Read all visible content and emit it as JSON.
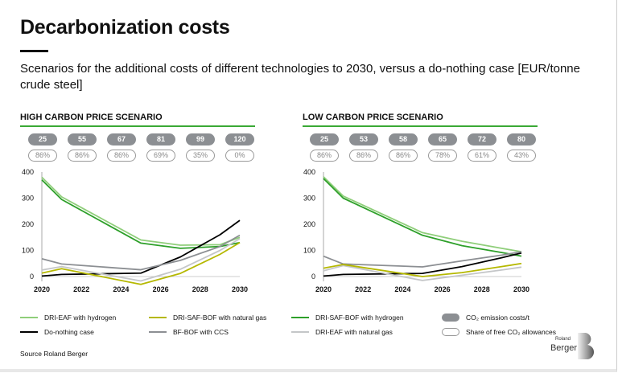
{
  "title": "Decarbonization costs",
  "subtitle": "Scenarios for the additional costs of different technologies to 2030, versus a do-nothing case [EUR/tonne crude steel]",
  "source": "Source Roland Berger",
  "logo": "Roland Berger",
  "legend": [
    {
      "label": "DRI-EAF with hydrogen",
      "color": "#8fce7a",
      "kind": "line"
    },
    {
      "label": "DRI-SAF-BOF with natural gas",
      "color": "#b5b800",
      "kind": "line"
    },
    {
      "label": "DRI-SAF-BOF with hydrogen",
      "color": "#2ea02a",
      "kind": "line"
    },
    {
      "label": "CO₂ emission costs/t",
      "color": "#8c8f93",
      "kind": "filled"
    },
    {
      "label": "Do-nothing case",
      "color": "#000000",
      "kind": "line"
    },
    {
      "label": "BF-BOF with CCS",
      "color": "#8c8f93",
      "kind": "line"
    },
    {
      "label": "DRI-EAF with natural gas",
      "color": "#c4c6c8",
      "kind": "line"
    },
    {
      "label": "Share of free CO₂ allowances",
      "color": "#999999",
      "kind": "outline"
    }
  ],
  "chart_data": [
    {
      "type": "line",
      "title": "HIGH CARBON PRICE SCENARIO",
      "ylim": [
        0,
        400
      ],
      "yticks": [
        "0",
        "100",
        "200",
        "300",
        "400"
      ],
      "xticks": [
        "2020",
        "2022",
        "2024",
        "2026",
        "2028",
        "2030"
      ],
      "co2_costs": [
        "25",
        "55",
        "67",
        "81",
        "99",
        "120"
      ],
      "free_allowances": [
        "86%",
        "86%",
        "86%",
        "69%",
        "35%",
        "0%"
      ],
      "x": [
        2020,
        2021,
        2025,
        2027,
        2029,
        2030
      ],
      "series": [
        {
          "name": "DRI-EAF with hydrogen",
          "color": "#8fce7a",
          "values": [
            380,
            305,
            140,
            120,
            122,
            150
          ]
        },
        {
          "name": "DRI-SAF-BOF with hydrogen",
          "color": "#2ea02a",
          "values": [
            370,
            295,
            128,
            108,
            115,
            130
          ]
        },
        {
          "name": "Do-nothing case",
          "color": "#000000",
          "values": [
            2,
            8,
            13,
            75,
            160,
            215
          ]
        },
        {
          "name": "BF-BOF with CCS",
          "color": "#8c8f93",
          "values": [
            68,
            48,
            26,
            62,
            115,
            158
          ]
        },
        {
          "name": "DRI-EAF with natural gas",
          "color": "#c4c6c8",
          "values": [
            25,
            38,
            -17,
            28,
            100,
            145
          ]
        },
        {
          "name": "DRI-SAF-BOF with natural gas",
          "color": "#b5b800",
          "values": [
            13,
            30,
            -30,
            12,
            85,
            130
          ]
        }
      ]
    },
    {
      "type": "line",
      "title": "LOW CARBON PRICE SCENARIO",
      "ylim": [
        0,
        400
      ],
      "yticks": [
        "0",
        "100",
        "200",
        "300",
        "400"
      ],
      "xticks": [
        "2020",
        "2022",
        "2024",
        "2026",
        "2028",
        "2030"
      ],
      "co2_costs": [
        "25",
        "53",
        "58",
        "65",
        "72",
        "80"
      ],
      "free_allowances": [
        "86%",
        "86%",
        "86%",
        "78%",
        "61%",
        "43%"
      ],
      "x": [
        2020,
        2021,
        2025,
        2027,
        2029,
        2030
      ],
      "series": [
        {
          "name": "DRI-EAF with hydrogen",
          "color": "#8fce7a",
          "values": [
            382,
            308,
            168,
            135,
            108,
            95
          ]
        },
        {
          "name": "DRI-SAF-BOF with hydrogen",
          "color": "#2ea02a",
          "values": [
            375,
            300,
            158,
            118,
            92,
            78
          ]
        },
        {
          "name": "Do-nothing case",
          "color": "#000000",
          "values": [
            2,
            8,
            12,
            38,
            72,
            90
          ]
        },
        {
          "name": "BF-BOF with CCS",
          "color": "#8c8f93",
          "values": [
            78,
            48,
            37,
            60,
            82,
            95
          ]
        },
        {
          "name": "DRI-EAF with natural gas",
          "color": "#c4c6c8",
          "values": [
            22,
            42,
            -15,
            5,
            25,
            36
          ]
        },
        {
          "name": "DRI-SAF-BOF with natural gas",
          "color": "#b5b800",
          "values": [
            32,
            46,
            0,
            15,
            38,
            50
          ]
        }
      ]
    }
  ]
}
